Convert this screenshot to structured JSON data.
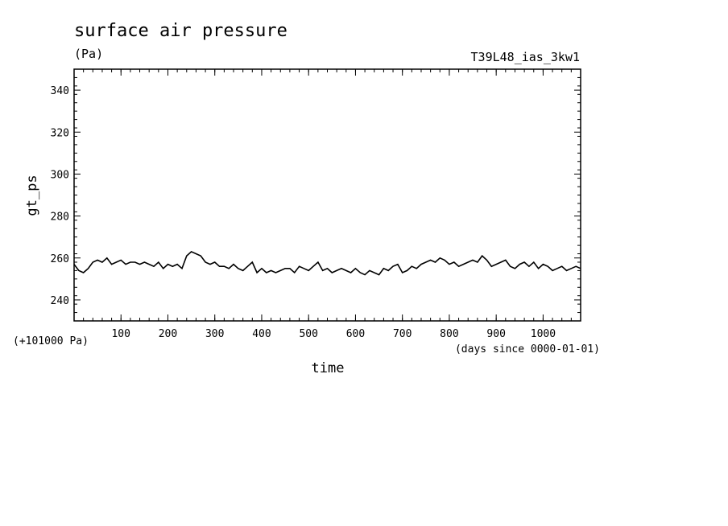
{
  "chart_data": {
    "type": "line",
    "title": "surface air pressure",
    "units": "(Pa)",
    "experiment": "T39L48_ias_3kw1",
    "xlabel": "time",
    "x_units": "(days since 0000-01-01)",
    "ylabel": "gt_ps",
    "y_offset_label": "(+101000 Pa)",
    "xlim": [
      0,
      1080
    ],
    "ylim": [
      230,
      350
    ],
    "xticks": [
      100,
      200,
      300,
      400,
      500,
      600,
      700,
      800,
      900,
      1000
    ],
    "yticks": [
      240,
      260,
      280,
      300,
      320,
      340
    ],
    "grid": false,
    "series": [
      {
        "x": [
          0,
          10,
          20,
          30,
          40,
          50,
          60,
          70,
          80,
          90,
          100,
          110,
          120,
          130,
          140,
          150,
          160,
          170,
          180,
          190,
          200,
          210,
          220,
          230,
          240,
          250,
          260,
          270,
          280,
          290,
          300,
          310,
          320,
          330,
          340,
          350,
          360,
          370,
          380,
          390,
          400,
          410,
          420,
          430,
          440,
          450,
          460,
          470,
          480,
          490,
          500,
          510,
          520,
          530,
          540,
          550,
          560,
          570,
          580,
          590,
          600,
          610,
          620,
          630,
          640,
          650,
          660,
          670,
          680,
          690,
          700,
          710,
          720,
          730,
          740,
          750,
          760,
          770,
          780,
          790,
          800,
          810,
          820,
          830,
          840,
          850,
          860,
          870,
          880,
          890,
          900,
          910,
          920,
          930,
          940,
          950,
          960,
          970,
          980,
          990,
          1000,
          1010,
          1020,
          1030,
          1040,
          1050,
          1060,
          1070,
          1080
        ],
        "y": [
          257,
          254,
          253,
          255,
          258,
          259,
          258,
          260,
          257,
          258,
          259,
          257,
          258,
          258,
          257,
          258,
          257,
          256,
          258,
          255,
          257,
          256,
          257,
          255,
          261,
          263,
          262,
          261,
          258,
          257,
          258,
          256,
          256,
          255,
          257,
          255,
          254,
          256,
          258,
          253,
          255,
          253,
          254,
          253,
          254,
          255,
          255,
          253,
          256,
          255,
          254,
          256,
          258,
          254,
          255,
          253,
          254,
          255,
          254,
          253,
          255,
          253,
          252,
          254,
          253,
          252,
          255,
          254,
          256,
          257,
          253,
          254,
          256,
          255,
          257,
          258,
          259,
          258,
          260,
          259,
          257,
          258,
          256,
          257,
          258,
          259,
          258,
          261,
          259,
          256,
          257,
          258,
          259,
          256,
          255,
          257,
          258,
          256,
          258,
          255,
          257,
          256,
          254,
          255,
          256,
          254,
          255,
          256,
          255
        ]
      }
    ]
  }
}
